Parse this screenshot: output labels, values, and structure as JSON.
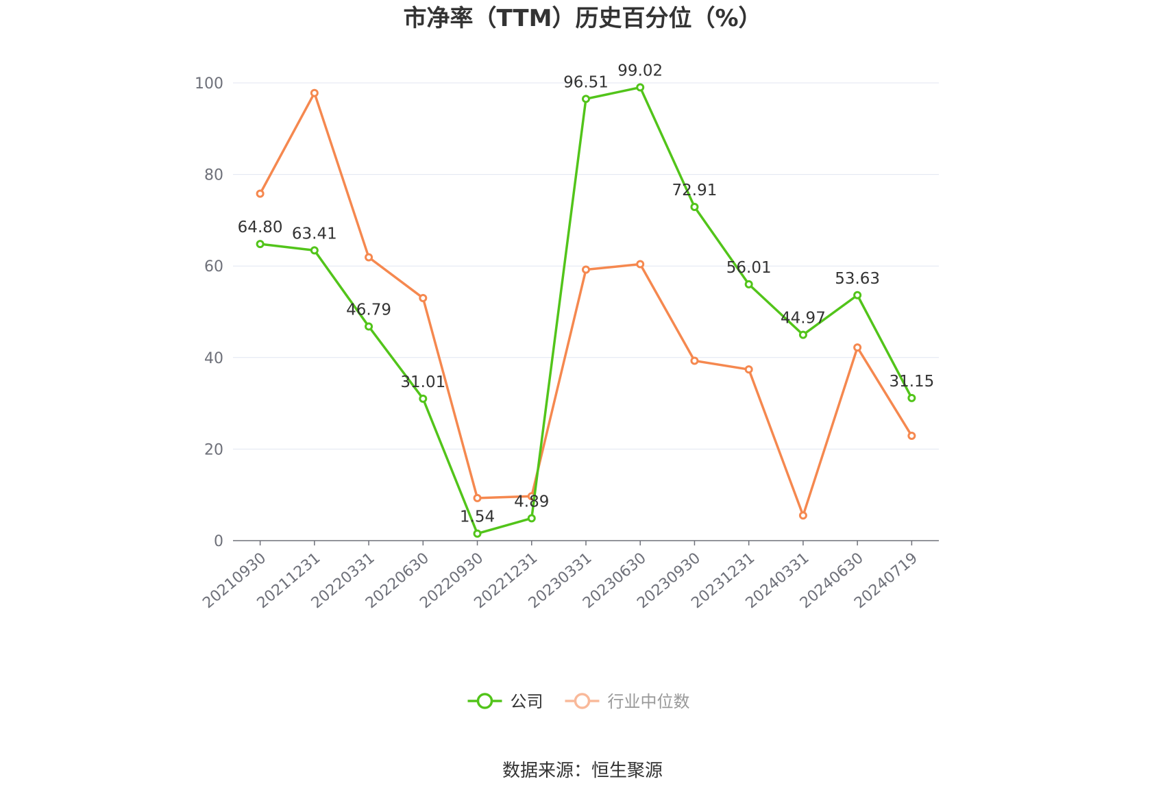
{
  "chart_data": {
    "type": "line",
    "title": "市净率（TTM）历史百分位（%）",
    "categories": [
      "20210930",
      "20211231",
      "20220331",
      "20220630",
      "20220930",
      "20221231",
      "20230331",
      "20230630",
      "20230930",
      "20231231",
      "20240331",
      "20240630",
      "20240719"
    ],
    "series": [
      {
        "name": "公司",
        "color": "#52c41a",
        "labeled": true,
        "values": [
          64.8,
          63.41,
          46.79,
          31.01,
          1.54,
          4.89,
          96.51,
          99.02,
          72.91,
          56.01,
          44.97,
          53.63,
          31.15
        ]
      },
      {
        "name": "行业中位数",
        "color": "#f5884f",
        "legend_color": "#f9b99a",
        "labeled": false,
        "values": [
          75.8,
          97.8,
          61.9,
          53.0,
          9.3,
          9.7,
          59.2,
          60.4,
          39.3,
          37.4,
          5.5,
          42.2,
          22.9
        ]
      }
    ],
    "ylim": [
      0,
      100
    ],
    "yticks": [
      0,
      20,
      40,
      60,
      80,
      100
    ],
    "grid": true,
    "legend_position": "bottom-center"
  },
  "source_text": "数据来源：恒生聚源"
}
